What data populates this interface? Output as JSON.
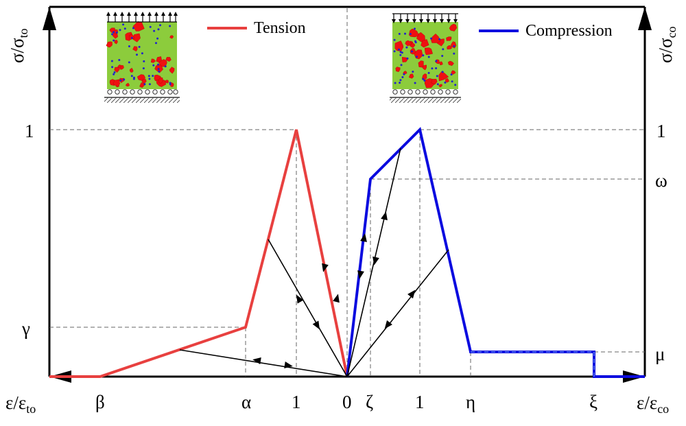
{
  "diagram": {
    "legend": {
      "tension": "Tension",
      "compression": "Compression"
    },
    "colors": {
      "tension": "#e8403f",
      "compression": "#0a0adf",
      "specimen": "#8ccc3c",
      "aggregate": "#ee1111",
      "pore": "#2222cc"
    },
    "y_axis_left": {
      "sym": "σ/σ",
      "sub": "to"
    },
    "y_axis_right": {
      "sym": "σ/σ",
      "sub": "co"
    },
    "x_axis_left": {
      "sym": "ε/ε",
      "sub": "to"
    },
    "x_axis_right": {
      "sym": "ε/ε",
      "sub": "co"
    },
    "ticks_bottom": [
      "β",
      "α",
      "1",
      "0",
      "ζ",
      "1",
      "η",
      "ξ"
    ],
    "ticks_left": [
      "1",
      "γ"
    ],
    "ticks_right": [
      "1",
      "ω",
      "μ"
    ]
  },
  "chart_data": {
    "type": "line",
    "title": "",
    "series": [
      {
        "name": "Tension",
        "x_units": "ε/ε_to",
        "y_units": "σ/σ_to",
        "points": [
          [
            "0",
            0
          ],
          [
            "1",
            1
          ],
          [
            "α",
            "γ"
          ],
          [
            "β",
            0
          ]
        ]
      },
      {
        "name": "Compression",
        "x_units": "ε/ε_co",
        "y_units": "σ/σ_co",
        "points": [
          [
            "0",
            0
          ],
          [
            "ζ",
            "ω"
          ],
          [
            "1",
            1
          ],
          [
            "η",
            "μ"
          ],
          [
            "ξ",
            "μ"
          ],
          [
            "ξ",
            0
          ]
        ]
      }
    ]
  }
}
